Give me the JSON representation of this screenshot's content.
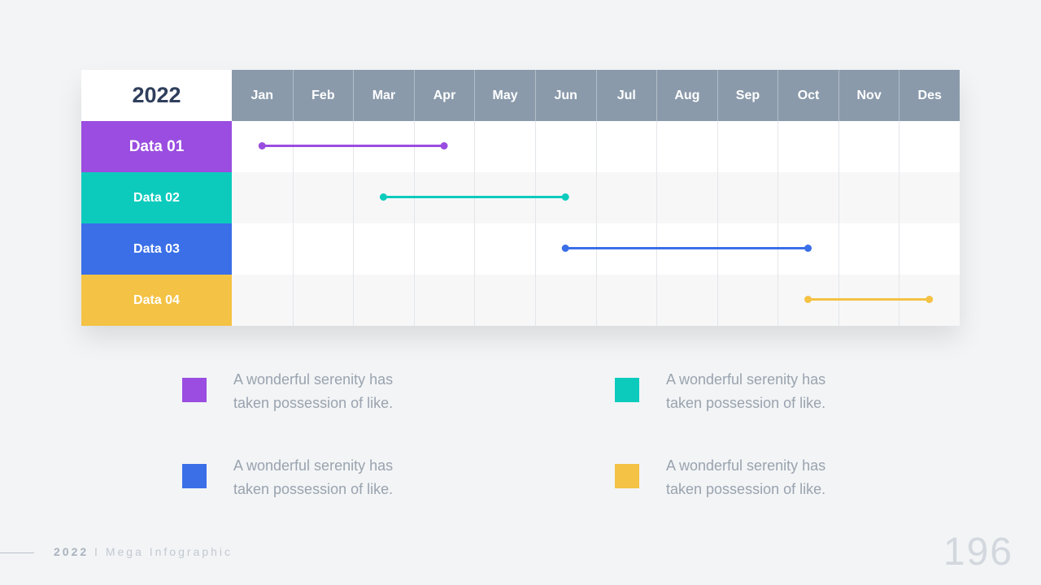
{
  "chart_data": {
    "type": "gantt",
    "year_label": "2022",
    "months": [
      "Jan",
      "Feb",
      "Mar",
      "Apr",
      "May",
      "Jun",
      "Jul",
      "Aug",
      "Sep",
      "Oct",
      "Nov",
      "Des"
    ],
    "tasks": [
      {
        "name": "Data 01",
        "start": 0.5,
        "end": 3.5,
        "color": "#9a4de0"
      },
      {
        "name": "Data 02",
        "start": 2.5,
        "end": 5.5,
        "color": "#0ccbbd"
      },
      {
        "name": "Data 03",
        "start": 5.5,
        "end": 9.5,
        "color": "#3a6fe8"
      },
      {
        "name": "Data 04",
        "start": 9.5,
        "end": 11.5,
        "color": "#f4c244"
      }
    ]
  },
  "legend": [
    {
      "color": "#9a4de0",
      "line1": "A wonderful serenity has",
      "line2": "taken possession of like."
    },
    {
      "color": "#0ccbbd",
      "line1": "A wonderful serenity has",
      "line2": "taken possession of like."
    },
    {
      "color": "#3a6fe8",
      "line1": "A wonderful serenity has",
      "line2": "taken possession of like."
    },
    {
      "color": "#f4c244",
      "line1": "A wonderful serenity has",
      "line2": "taken possession of like."
    }
  ],
  "footer": {
    "year": "2022",
    "separator": "I",
    "title": "Mega Infographic",
    "page_number": "196"
  }
}
